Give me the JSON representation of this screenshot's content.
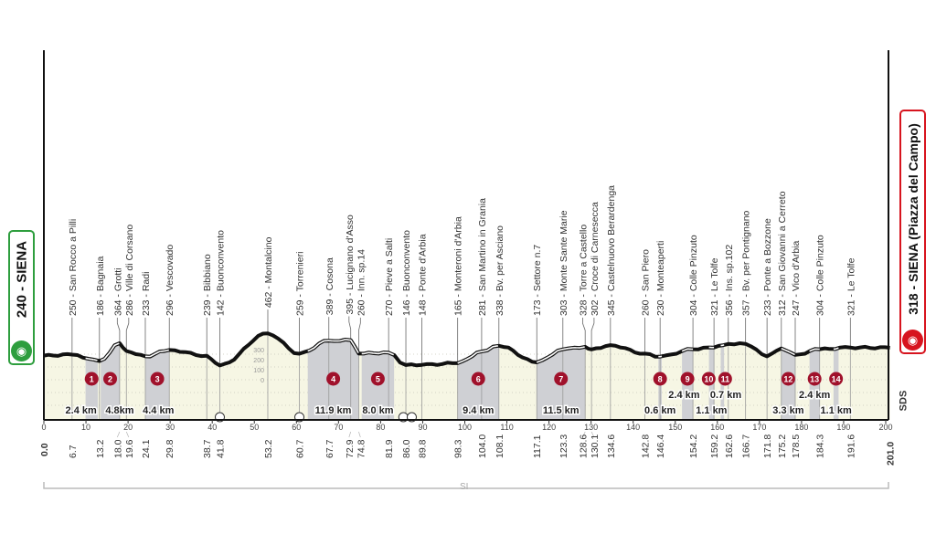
{
  "start": {
    "label": "240 - SIENA",
    "color": "#2e9e3e",
    "icon": "bicycle-icon"
  },
  "finish": {
    "label": "318 - SIENA (Piazza del Campo)",
    "color": "#d7141e",
    "icon": "bicycle-icon"
  },
  "brand": "SDS",
  "road_type_label": "SI",
  "colors": {
    "profile": "#111111",
    "fill": "#f6f6e4",
    "sector": "#cfd0d4",
    "sector_badge": "#a0112b"
  },
  "chart_data": {
    "type": "area",
    "title": "",
    "xlabel": "",
    "ylabel": "",
    "xlim": [
      0,
      201
    ],
    "ylim": [
      0,
      500
    ],
    "grid": true,
    "x_ticks": [
      "0",
      "10",
      "20",
      "30",
      "40",
      "50",
      "60",
      "70",
      "80",
      "90",
      "100",
      "110",
      "120",
      "130",
      "140",
      "150",
      "160",
      "170",
      "180",
      "190",
      "200"
    ],
    "alt_scale_ticks": [
      "300",
      "200",
      "100",
      "0"
    ],
    "start_km_label": "0.0",
    "finish_km_label": "201.0",
    "waypoints": [
      {
        "km": "6.7",
        "alt": 250,
        "name": "250 - San Rocco a Pilli"
      },
      {
        "km": "13.2",
        "alt": 186,
        "name": "186 - Bagnaia"
      },
      {
        "km": "18.0",
        "alt": 364,
        "name": "364 - Grotti"
      },
      {
        "km": "19.6",
        "alt": 286,
        "name": "286 - Ville di Corsano"
      },
      {
        "km": "24.1",
        "alt": 233,
        "name": "233 - Radi"
      },
      {
        "km": "29.8",
        "alt": 296,
        "name": "296 - Vescovado"
      },
      {
        "km": "38.7",
        "alt": 239,
        "name": "239 - Bibbiano"
      },
      {
        "km": "41.8",
        "alt": 142,
        "name": "142 - Buonconvento"
      },
      {
        "km": "53.2",
        "alt": 462,
        "name": "462 - Montalcino"
      },
      {
        "km": "60.7",
        "alt": 259,
        "name": "259 - Torrenieri"
      },
      {
        "km": "67.7",
        "alt": 389,
        "name": "389 - Cosona"
      },
      {
        "km": "72.9",
        "alt": 395,
        "name": "395 - Lucignano d'Asso"
      },
      {
        "km": "74.8",
        "alt": 260,
        "name": "260 - Inn. sp.14"
      },
      {
        "km": "81.9",
        "alt": 270,
        "name": "270 - Pieve a Salti"
      },
      {
        "km": "86.0",
        "alt": 146,
        "name": "146 - Buonconvento"
      },
      {
        "km": "89.8",
        "alt": 148,
        "name": "148 - Ponte d'Arbia"
      },
      {
        "km": "98.3",
        "alt": 165,
        "name": "165 - Monteroni d'Arbia"
      },
      {
        "km": "104.0",
        "alt": 281,
        "name": "281 - San Martino in Grania"
      },
      {
        "km": "108.1",
        "alt": 338,
        "name": "338 - Bv. per Asciano"
      },
      {
        "km": "117.1",
        "alt": 173,
        "name": "173 - Settore n.7"
      },
      {
        "km": "123.3",
        "alt": 303,
        "name": "303 - Monte Sante Marie"
      },
      {
        "km": "128.6",
        "alt": 328,
        "name": "328 - Torre a Castello"
      },
      {
        "km": "130.1",
        "alt": 302,
        "name": "302 - Croce di Carnesecca"
      },
      {
        "km": "134.6",
        "alt": 345,
        "name": "345 - Castelnuovo Berardenga"
      },
      {
        "km": "142.8",
        "alt": 260,
        "name": "260 - San Piero"
      },
      {
        "km": "146.4",
        "alt": 230,
        "name": "230 - Monteaperti"
      },
      {
        "km": "154.2",
        "alt": 304,
        "name": "304 - Colle Pinzuto"
      },
      {
        "km": "159.2",
        "alt": 321,
        "name": "321 - Le Tolfe"
      },
      {
        "km": "162.6",
        "alt": 356,
        "name": "356 - Ins. sp.102"
      },
      {
        "km": "166.7",
        "alt": 357,
        "name": "357 - Bv. per Pontignano"
      },
      {
        "km": "171.8",
        "alt": 233,
        "name": "233 - Ponte a Bozzone"
      },
      {
        "km": "175.2",
        "alt": 312,
        "name": "312 - San Giovanni a Cerreto"
      },
      {
        "km": "178.5",
        "alt": 247,
        "name": "247 - Vico d'Arbia"
      },
      {
        "km": "184.3",
        "alt": 304,
        "name": "304 - Colle Pinzuto"
      },
      {
        "km": "191.6",
        "alt": 321,
        "name": "321 - Le Tolfe"
      }
    ],
    "start_alt": 240,
    "finish_alt": 318,
    "sectors": [
      {
        "n": "1",
        "start": 9.9,
        "end": 12.8,
        "length": "2.4 km"
      },
      {
        "n": "2",
        "start": 13.5,
        "end": 18.0,
        "length": "4.8km"
      },
      {
        "n": "3",
        "start": 24.1,
        "end": 29.8,
        "length": "4.4 km"
      },
      {
        "n": "4",
        "start": 62.7,
        "end": 74.8,
        "length": "11.9 km"
      },
      {
        "n": "5",
        "start": 75.5,
        "end": 83.2,
        "length": "8.0 km"
      },
      {
        "n": "6",
        "start": 98.3,
        "end": 108.1,
        "length": "9.4 km"
      },
      {
        "n": "7",
        "start": 117.1,
        "end": 128.6,
        "length": "11.5 km"
      },
      {
        "n": "8",
        "start": 146.0,
        "end": 146.8,
        "length": "0.6 km"
      },
      {
        "n": "9",
        "start": 151.6,
        "end": 154.2,
        "length": "2.4 km"
      },
      {
        "n": "10",
        "start": 158.0,
        "end": 159.2,
        "length": "1.1 km"
      },
      {
        "n": "11",
        "start": 160.8,
        "end": 161.6,
        "length": "0.7 km"
      },
      {
        "n": "12",
        "start": 175.2,
        "end": 178.5,
        "length": "3.3 km"
      },
      {
        "n": "13",
        "start": 181.9,
        "end": 184.3,
        "length": "2.4 km"
      },
      {
        "n": "14",
        "start": 187.6,
        "end": 188.8,
        "length": "1.1 km"
      }
    ],
    "railway_crossings_km": [
      41.8,
      60.7,
      85.4,
      87.4
    ]
  }
}
